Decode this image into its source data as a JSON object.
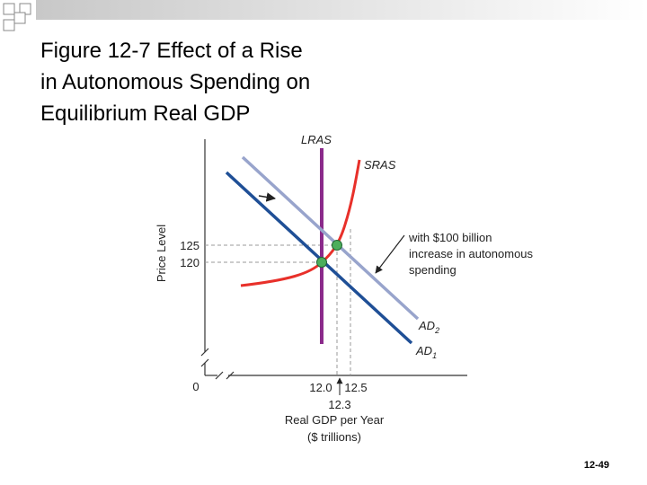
{
  "title": {
    "lines": [
      "Figure 12-7  Effect of a Rise",
      "in Autonomous Spending on",
      "Equilibrium Real GDP"
    ]
  },
  "diagram": {
    "y_axis_label": "Price Level",
    "x_axis_label": [
      "Real GDP per Year",
      "($ trillions)"
    ],
    "y_ticks": [
      "125",
      "120"
    ],
    "x_ticks": [
      "12.0",
      "12.5",
      "12.3"
    ],
    "origin": "0",
    "curves": {
      "lras": "LRAS",
      "sras": "SRAS",
      "ad2": "AD",
      "ad2_sub": "2",
      "ad1": "AD",
      "ad1_sub": "1"
    },
    "annotation": [
      "with $100 billion",
      "increase in autonomous",
      "spending"
    ]
  },
  "slide_number": "12-49"
}
